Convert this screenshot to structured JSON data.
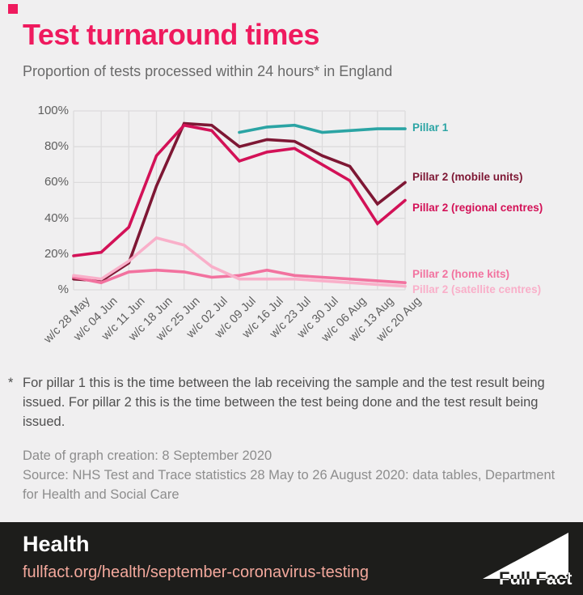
{
  "brand": {
    "accent_color": "#EF1A5E"
  },
  "header": {
    "title": "Test turnaround times",
    "subtitle": "Proportion of tests processed within 24 hours* in England"
  },
  "chart_data": {
    "type": "line",
    "title": "Test turnaround times",
    "categories": [
      "w/c 28 May",
      "w/c 04 Jun",
      "w/c 11 Jun",
      "w/c 18 Jun",
      "w/c 25 Jun",
      "w/c 02 Jul",
      "w/c 09 Jul",
      "w/c 16 Jul",
      "w/c 23 Jul",
      "w/c 30 Jul",
      "w/c 06 Aug",
      "w/c 13 Aug",
      "w/c 20 Aug"
    ],
    "y_ticks": [
      "100%",
      "80%",
      "60%",
      "40%",
      "20%",
      "%"
    ],
    "ylim": [
      0,
      100
    ],
    "grid": true,
    "legend_position": "right",
    "series": [
      {
        "name": "Pillar 1",
        "color": "#2BA4A4",
        "values": [
          null,
          null,
          null,
          null,
          null,
          null,
          88,
          91,
          92,
          88,
          89,
          90,
          90
        ]
      },
      {
        "name": "Pillar 2 (mobile units)",
        "color": "#7E1734",
        "values": [
          6,
          5,
          15,
          58,
          93,
          92,
          80,
          84,
          83,
          75,
          69,
          48,
          60
        ]
      },
      {
        "name": "Pillar 2 (regional centres)",
        "color": "#D31157",
        "values": [
          19,
          21,
          35,
          75,
          92,
          89,
          72,
          77,
          79,
          70,
          61,
          37,
          50
        ]
      },
      {
        "name": "Pillar 2 (home kits)",
        "color": "#F2729F",
        "values": [
          7,
          4,
          10,
          11,
          10,
          7,
          8,
          11,
          8,
          7,
          6,
          5,
          4
        ]
      },
      {
        "name": "Pillar 2 (satellite centres)",
        "color": "#F9AFC9",
        "values": [
          8,
          6,
          16,
          29,
          25,
          13,
          6,
          6,
          6,
          5,
          4,
          3,
          2
        ]
      }
    ]
  },
  "footnote": {
    "marker": "*",
    "text": "For pillar 1 this is the time between the lab receiving the sample and the test result being\nissued. For pillar 2 this is the time between the test being done and the test result being\nissued."
  },
  "meta": {
    "date_line": "Date of graph creation: 8 September 2020",
    "source_line": "Source: NHS Test and Trace statistics 28 May to 26 August 2020: data tables, Department\nfor Health and Social Care"
  },
  "footer": {
    "section": "Health",
    "url": "fullfact.org/health/september-coronavirus-testing",
    "logo_text": "Full Fact"
  }
}
